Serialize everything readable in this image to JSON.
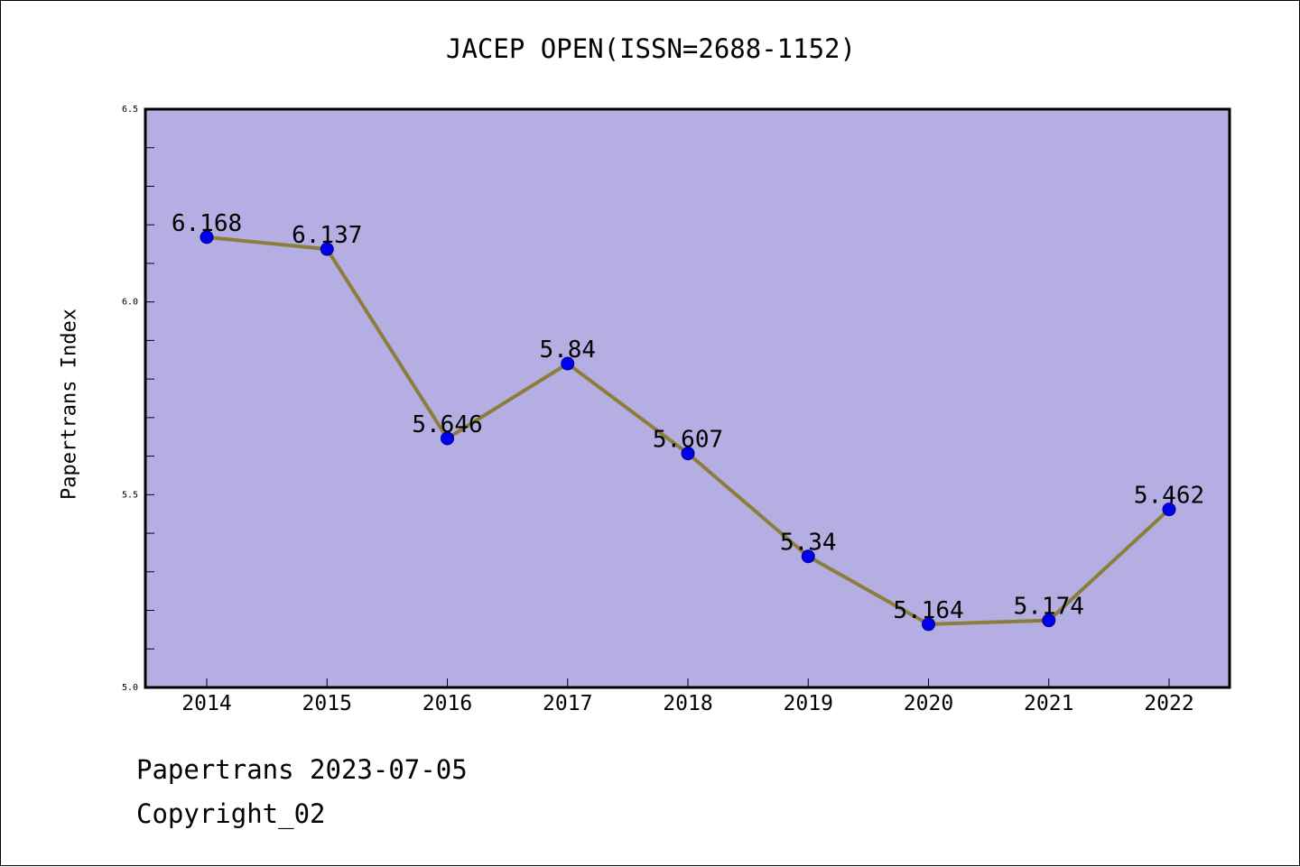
{
  "chart_data": {
    "type": "line",
    "title": "JACEP OPEN(ISSN=2688-1152)",
    "xlabel": "",
    "ylabel": "Papertrans Index",
    "categories": [
      "2014",
      "2015",
      "2016",
      "2017",
      "2018",
      "2019",
      "2020",
      "2021",
      "2022"
    ],
    "series": [
      {
        "values": [
          6.168,
          6.137,
          5.646,
          5.84,
          5.607,
          5.34,
          5.164,
          5.174,
          5.462
        ],
        "labels": [
          "6.168",
          "6.137",
          "5.646",
          "5.84",
          "5.607",
          "5.34",
          "5.164",
          "5.174",
          "5.462"
        ]
      }
    ],
    "ylim": [
      5.0,
      6.5
    ],
    "yticks": [
      "5.0",
      "5.5",
      "6.0",
      "6.5"
    ],
    "grid": false,
    "colors": {
      "plot_background": "#b4aee2",
      "line": "#8b7d3a",
      "marker": "#0000ee",
      "marker_edge": "#00008b"
    }
  },
  "footer": {
    "line1": "Papertrans 2023-07-05",
    "line2": "Copyright_02"
  }
}
